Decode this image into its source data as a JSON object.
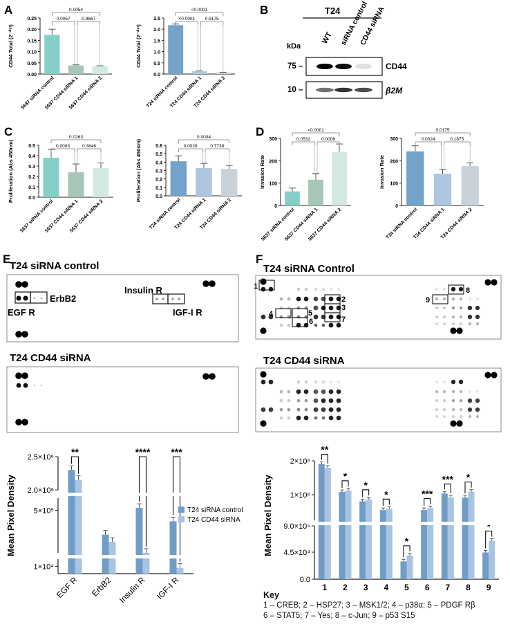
{
  "colors": {
    "teal": "#86cfc9",
    "sage": "#a6c6b6",
    "mint": "#d3e9df",
    "blue": "#73a3c9",
    "lightblue": "#aec6e0",
    "grey": "#c9d2d9",
    "ctrl": "#6f9dc6",
    "cd44": "#a9c4e3",
    "blot": "#111111"
  },
  "panels": {
    "A": "A",
    "B": "B",
    "C": "C",
    "D": "D",
    "E": "E",
    "F": "F"
  },
  "panel_b": {
    "header": "T24",
    "kda": "kDa",
    "lanes": [
      "WT",
      "siRNA control",
      "CD44 siRNA"
    ],
    "markers": [
      "75 –",
      "10 –"
    ],
    "bands": [
      "CD44",
      "β2M"
    ],
    "cd44_intensity": [
      1.0,
      0.95,
      0.12
    ],
    "b2m_intensity": [
      0.55,
      0.8,
      0.7
    ]
  },
  "panel_e": {
    "blot1_title": "T24 siRNA control",
    "blot2_title": "T24 CD44 siRNA",
    "labels": {
      "egfr": "EGF R",
      "erbb2": "ErbB2",
      "insulin": "Insulin R",
      "igf": "IGF-I R"
    }
  },
  "panel_f": {
    "blot1_title": "T24 siRNA Control",
    "blot2_title": "T24 CD44 siRNA",
    "box_numbers": [
      "1",
      "2",
      "3",
      "4",
      "5",
      "6",
      "7",
      "8",
      "9"
    ]
  },
  "key": {
    "title": "Key",
    "line1": "1 – CREB; 2 – HSP27; 3 – MSK1/2; 4 – p38α; 5 – PDGF Rβ",
    "line2": "6 – STAT5; 7 – Yes; 8 – c-Jun; 9 – p53 S15"
  },
  "chart_data": [
    {
      "id": "A1",
      "type": "bar",
      "ylabel": "CD44 Total (2^-ΔCt)",
      "ylabel_display": "CD44 Total (2⁻ᐞᶜᵗ)",
      "ylim": [
        0,
        0.25
      ],
      "yticks": [
        "0.00",
        "0.05",
        "0.10",
        "0.15",
        "0.20",
        "0.25"
      ],
      "categories": [
        "5637 siRNA control",
        "5637 CD44 siRNA 1",
        "5637 CD44 siRNA 2"
      ],
      "values": [
        0.175,
        0.038,
        0.035
      ],
      "errors": [
        0.025,
        0.003,
        0.002
      ],
      "pvalues": [
        "0.0054",
        "0.0057",
        "0.9867"
      ]
    },
    {
      "id": "A2",
      "type": "bar",
      "ylabel": "CD44 Total (2^-ΔCt)",
      "ylabel_display": "CD44 Total (2⁻ᐞᶜᵗ)",
      "ylim": [
        0,
        2.5
      ],
      "yticks": [
        "0.0",
        "0.5",
        "1.0",
        "1.5",
        "2.0",
        "2.5"
      ],
      "categories": [
        "T24 siRNA control",
        "T24 CD44 siRNA 1",
        "T24 CD44 siRNA 2"
      ],
      "values": [
        2.18,
        0.12,
        0.07
      ],
      "errors": [
        0.05,
        0.02,
        0.01
      ],
      "pvalues": [
        "<0.0001",
        "<0.0001",
        "0.9175"
      ]
    },
    {
      "id": "C1",
      "type": "bar",
      "ylabel": "Proliferation (Abs 450nm)",
      "ylim": [
        0,
        0.5
      ],
      "yticks": [
        "0.0",
        "0.1",
        "0.2",
        "0.3",
        "0.4",
        "0.5"
      ],
      "categories": [
        "5637 siRNA control",
        "5637 CD44 siRNA 1",
        "5637 CD44 siRNA 2"
      ],
      "values": [
        0.38,
        0.24,
        0.28
      ],
      "errors": [
        0.08,
        0.08,
        0.05
      ],
      "pvalues": [
        "0.0263",
        "0.0003",
        "0.3846"
      ]
    },
    {
      "id": "C2",
      "type": "bar",
      "ylabel": "Proliferation (Abs 450nm)",
      "ylim": [
        0,
        0.6
      ],
      "yticks": [
        "0.0",
        "0.1",
        "0.2",
        "0.3",
        "0.4",
        "0.5",
        "0.6"
      ],
      "categories": [
        "T24 siRNA control",
        "T24 CD44 siRNA 1",
        "T24 CD44 siRNA 2"
      ],
      "values": [
        0.41,
        0.33,
        0.32
      ],
      "errors": [
        0.065,
        0.055,
        0.04
      ],
      "pvalues": [
        "0.0004",
        "0.0028",
        "0.7738"
      ]
    },
    {
      "id": "D1",
      "type": "bar",
      "ylabel": "Invasion Rate",
      "ylim": [
        0,
        300
      ],
      "yticks": [
        "0",
        "100",
        "200",
        "300"
      ],
      "categories": [
        "5637 siRNA control",
        "5637 CD44 siRNA 1",
        "5637 CD44 siRNA 2"
      ],
      "values": [
        63,
        115,
        240
      ],
      "errors": [
        15,
        28,
        35
      ],
      "pvalues": [
        "<0.0001",
        "0.0532",
        "0.0006"
      ]
    },
    {
      "id": "D2",
      "type": "bar",
      "ylabel": "Invasion Rate",
      "ylim": [
        0,
        300
      ],
      "yticks": [
        "0",
        "100",
        "200",
        "300"
      ],
      "categories": [
        "T24 siRNA control",
        "T24 CD44 siRNA 1",
        "T24 CD44 siRNA 2"
      ],
      "values": [
        242,
        142,
        176
      ],
      "errors": [
        25,
        20,
        15
      ],
      "pvalues": [
        "0.0175",
        "0.0024",
        "0.1875"
      ]
    },
    {
      "id": "E",
      "type": "bar",
      "ylabel": "Mean Pixel Density",
      "y_scale": "broken",
      "yticks": [
        "1×10⁴",
        "5×10⁵",
        "2.0×10⁶",
        "2.5×10⁶"
      ],
      "categories": [
        "EGF R",
        "ErbB2",
        "Insulin R",
        "IGF-I R"
      ],
      "series": [
        {
          "name": "T24 siRNA control",
          "values": [
            2300000,
            300000,
            520000,
            410000
          ]
        },
        {
          "name": "T24 CD44 siRNA",
          "values": [
            2150000,
            240000,
            150000,
            8000
          ]
        }
      ],
      "significance": [
        "**",
        "",
        "****",
        "***"
      ],
      "legend_position": "right"
    },
    {
      "id": "F",
      "type": "bar",
      "ylabel": "Mean Pixel Density",
      "y_scale": "broken",
      "yticks": [
        "0.0",
        "4.5×10⁴",
        "9.0×10⁴",
        "1×10⁶",
        "2×10⁶"
      ],
      "categories": [
        "1",
        "2",
        "3",
        "4",
        "5",
        "6",
        "7",
        "8",
        "9"
      ],
      "series": [
        {
          "name": "T24 siRNA control",
          "values": [
            1900000,
            1000000,
            700000,
            420000,
            30000,
            420000,
            950000,
            820000,
            45000
          ]
        },
        {
          "name": "T24 CD44 siRNA",
          "values": [
            1780000,
            1050000,
            760000,
            460000,
            40000,
            480000,
            820000,
            1010000,
            65000
          ]
        }
      ],
      "significance": [
        "**",
        "*",
        "*",
        "*",
        "*",
        "***",
        "***",
        "*",
        "*"
      ]
    }
  ]
}
